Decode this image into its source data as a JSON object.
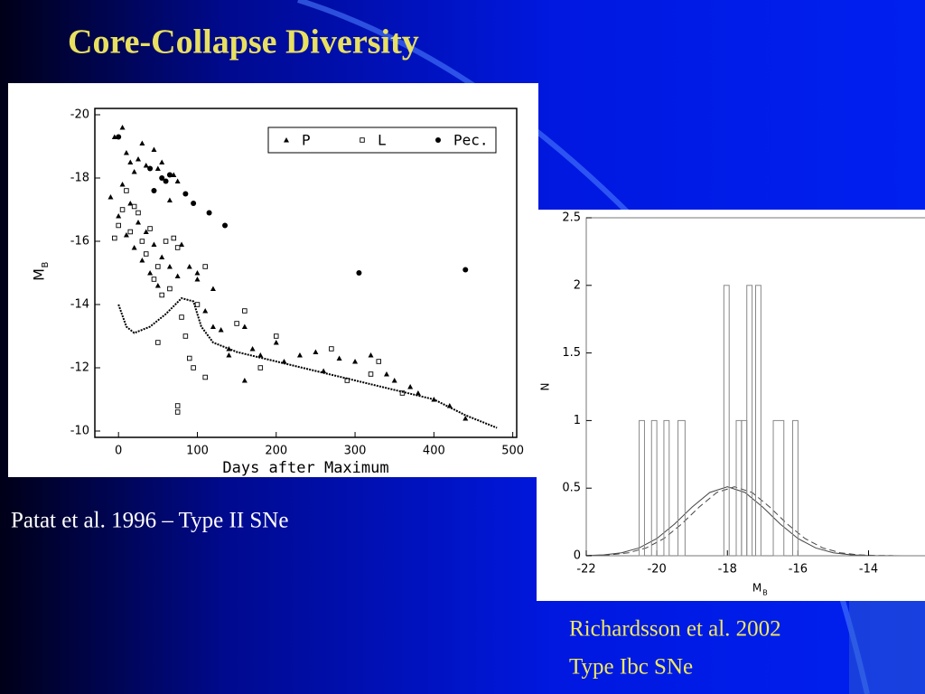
{
  "slide": {
    "title": "Core-Collapse Diversity",
    "caption_left": "Patat et al. 1996 – Type II SNe",
    "caption_right": [
      "Richardsson et al. 2002",
      "Type Ibc SNe"
    ]
  },
  "chart_data": [
    {
      "type": "scatter",
      "xlabel": "Days after Maximum",
      "ylabel": "M",
      "ylabel_subscript": "B",
      "xlim": [
        -30,
        505
      ],
      "ylim": [
        -9.8,
        -20.2
      ],
      "xticks": [
        0,
        100,
        200,
        300,
        400,
        500
      ],
      "yticks": [
        -20,
        -18,
        -16,
        -14,
        -12,
        -10
      ],
      "legend": "upper right",
      "series": [
        {
          "name": "P",
          "marker": "triangle",
          "color": "#000000",
          "x": [
            -5,
            5,
            10,
            15,
            20,
            25,
            30,
            35,
            45,
            50,
            55,
            65,
            70,
            75,
            80,
            90,
            100,
            5,
            15,
            25,
            35,
            45,
            55,
            65,
            75,
            -10,
            0,
            10,
            20,
            30,
            40,
            50,
            110,
            120,
            130,
            140,
            160,
            170,
            180,
            200,
            210,
            230,
            250,
            260,
            280,
            300,
            320,
            340,
            350,
            370,
            380,
            400,
            420,
            440,
            120,
            100,
            160,
            140
          ],
          "values": [
            -19.3,
            -19.6,
            -18.8,
            -18.5,
            -18.2,
            -18.6,
            -19.1,
            -18.4,
            -18.9,
            -18.3,
            -18.5,
            -17.3,
            -18.1,
            -17.9,
            -15.9,
            -15.2,
            -15,
            -17.8,
            -17.2,
            -16.6,
            -16.3,
            -15.9,
            -15.5,
            -15.2,
            -14.9,
            -17.4,
            -16.8,
            -16.2,
            -15.8,
            -15.4,
            -15,
            -14.6,
            -13.8,
            -13.3,
            -13.2,
            -12.4,
            -13.3,
            -12.6,
            -12.4,
            -12.8,
            -12.2,
            -12.4,
            -12.5,
            -11.9,
            -12.3,
            -12.2,
            -12.4,
            -11.8,
            -11.6,
            -11.4,
            -11.2,
            -11,
            -10.8,
            -10.4,
            -14.5,
            -14.8,
            -11.6,
            -12.6
          ]
        },
        {
          "name": "L",
          "marker": "square",
          "color": "#000000",
          "x": [
            -5,
            0,
            5,
            10,
            15,
            20,
            25,
            30,
            35,
            40,
            45,
            50,
            55,
            60,
            65,
            70,
            75,
            80,
            85,
            90,
            95,
            100,
            110,
            150,
            160,
            180,
            200,
            270,
            290,
            330,
            360,
            75,
            75,
            50,
            110,
            320
          ],
          "values": [
            -16.1,
            -16.5,
            -17,
            -17.6,
            -16.3,
            -17.1,
            -16.9,
            -16,
            -15.6,
            -16.4,
            -14.8,
            -15.2,
            -14.3,
            -16,
            -14.5,
            -16.1,
            -15.8,
            -13.6,
            -13,
            -12.3,
            -12,
            -14,
            -15.2,
            -13.4,
            -13.8,
            -12,
            -13,
            -12.6,
            -11.6,
            -12.2,
            -11.2,
            -10.8,
            -10.6,
            -12.8,
            -11.7,
            -11.8
          ]
        },
        {
          "name": "Pec.",
          "marker": "circle",
          "color": "#000000",
          "x": [
            0,
            40,
            45,
            55,
            60,
            65,
            85,
            95,
            115,
            135,
            305,
            440
          ],
          "values": [
            -19.3,
            -18.3,
            -17.6,
            -18,
            -17.9,
            -18.1,
            -17.5,
            -17.2,
            -16.9,
            -16.5,
            -15,
            -15.1
          ]
        },
        {
          "marker": "line",
          "color": "#000000",
          "x": [
            0,
            10,
            20,
            40,
            60,
            80,
            95,
            105,
            120,
            150,
            200,
            300,
            400,
            440,
            480
          ],
          "values": [
            -14,
            -13.3,
            -13.1,
            -13.3,
            -13.7,
            -14.2,
            -14.1,
            -13.3,
            -12.8,
            -12.5,
            -12.2,
            -11.6,
            -11,
            -10.5,
            -10.1
          ]
        }
      ]
    },
    {
      "type": "histogram",
      "xlabel": "M",
      "xlabel_subscript": "B",
      "ylabel": "N",
      "xlim": [
        -22,
        -12.4
      ],
      "ylim": [
        0,
        2.5
      ],
      "xticks": [
        -22,
        -20,
        -18,
        -16,
        -14
      ],
      "yticks": [
        0,
        0.5,
        1,
        1.5,
        2,
        2.5
      ],
      "color": "#888888",
      "bins": [
        -20.5,
        -20.35,
        -20.15,
        -20,
        -19.8,
        -19.65,
        -19.4,
        -19.2,
        -18.1,
        -17.95,
        -17.75,
        -17.6,
        -17.45,
        -17.3,
        -17.2,
        -17.05,
        -16.7,
        -16.4,
        -16.15,
        -16
      ],
      "counts": [
        1,
        0,
        1,
        0,
        1,
        0,
        1,
        0,
        2,
        0,
        1,
        1,
        2,
        0,
        2,
        0,
        1,
        0,
        1
      ],
      "curves": [
        {
          "style": "solid",
          "color": "#444444",
          "x": [
            -22,
            -21.5,
            -21,
            -20.5,
            -20,
            -19.5,
            -19,
            -18.5,
            -18,
            -17.5,
            -17,
            -16.5,
            -16,
            -15.5,
            -15,
            -14.5,
            -14,
            -13.5,
            -13
          ],
          "values": [
            0.002,
            0.007,
            0.022,
            0.058,
            0.127,
            0.234,
            0.36,
            0.468,
            0.51,
            0.468,
            0.36,
            0.234,
            0.127,
            0.058,
            0.022,
            0.007,
            0.002,
            0.001,
            0
          ]
        },
        {
          "style": "dashed",
          "color": "#444444",
          "x": [
            -21.8,
            -21.3,
            -20.8,
            -20.3,
            -19.8,
            -19.3,
            -18.8,
            -18.3,
            -17.8,
            -17.3,
            -16.8,
            -16.3,
            -15.8,
            -15.3,
            -14.8,
            -14.3,
            -13.8,
            -13.3
          ],
          "values": [
            0.002,
            0.007,
            0.022,
            0.058,
            0.127,
            0.234,
            0.36,
            0.468,
            0.51,
            0.468,
            0.36,
            0.234,
            0.127,
            0.058,
            0.022,
            0.007,
            0.002,
            0.001
          ]
        }
      ]
    }
  ]
}
